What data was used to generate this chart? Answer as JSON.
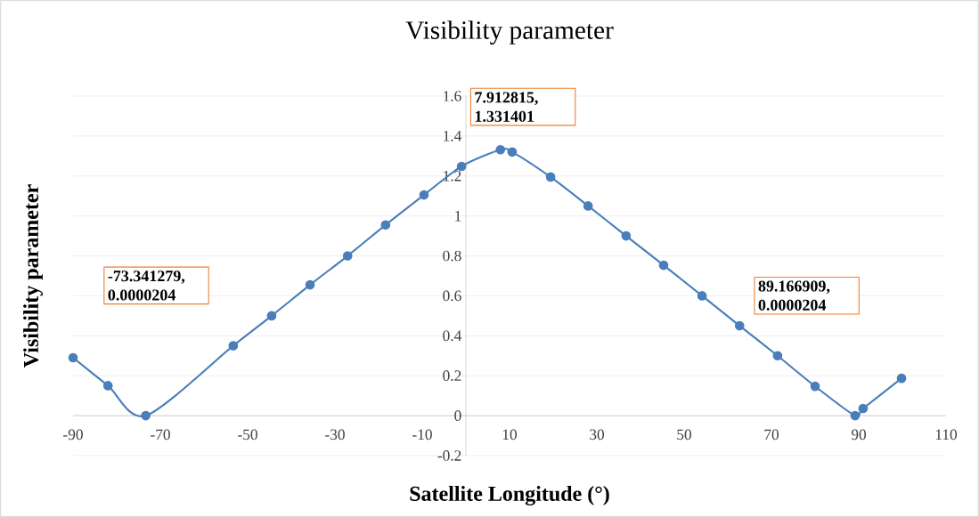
{
  "chart_data": {
    "type": "line",
    "title": "Visibility parameter",
    "xlabel": "Satellite Longitude (°)",
    "ylabel": "Visibility parameter",
    "series": [
      {
        "color": "#4a7ebb",
        "x": [
          -90,
          -82.0,
          -73.341279,
          -53.3,
          -44.5,
          -35.7,
          -27.1,
          -18.4,
          -9.6,
          -1.0,
          7.912815,
          10.6,
          19.4,
          28.0,
          36.7,
          45.3,
          54.1,
          62.7,
          71.4,
          80.0,
          89.166909,
          91.0,
          99.8
        ],
        "values": [
          0.29,
          0.15,
          2.04e-05,
          0.35,
          0.5,
          0.655,
          0.8,
          0.955,
          1.105,
          1.248,
          1.331401,
          1.32,
          1.195,
          1.05,
          0.9,
          0.753,
          0.6,
          0.45,
          0.3,
          0.147,
          2.04e-05,
          0.036,
          0.187
        ]
      }
    ],
    "xlim": [
      -90,
      110
    ],
    "xticks": [
      -90,
      -70,
      -50,
      -30,
      -10,
      10,
      30,
      50,
      70,
      90,
      110
    ],
    "ylim": [
      -0.2,
      1.6
    ],
    "yticks": [
      -0.2,
      0,
      0.2,
      0.4,
      0.6,
      0.8,
      1,
      1.2,
      1.4,
      1.6
    ],
    "grid": "y",
    "marker": "circle",
    "line_style": "solid",
    "annotations": [
      "-73.341279, 0.0000204",
      "7.912815, 1.331401",
      "89.166909, 0.0000204"
    ]
  }
}
